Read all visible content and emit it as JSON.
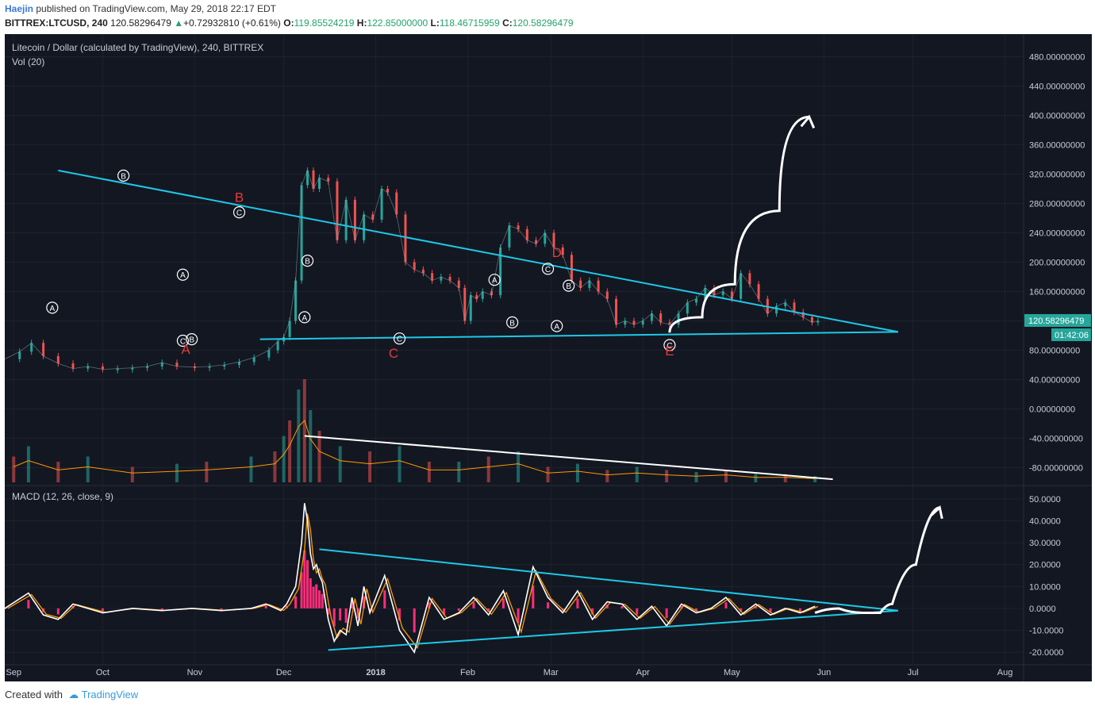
{
  "header": {
    "user": "Haejin",
    "published": "published on TradingView.com, May 29, 2018 22:17 EDT",
    "symbol": "BITTREX:LTCUSD, 240",
    "price": "120.58296479",
    "change": "+0.72932810 (+0.61%)",
    "o_label": "O:",
    "o_value": "119.85524219",
    "h_label": "H:",
    "h_value": "122.85000000",
    "l_label": "L:",
    "l_value": "118.46715959",
    "c_label": "C:",
    "c_value": "120.58296479"
  },
  "chart": {
    "title": "Litecoin / Dollar (calculated by TradingView), 240, BITTREX",
    "volume_label": "Vol (20)",
    "macd_label": "MACD (12, 26, close, 9)",
    "last_price_tag": "120.58296479",
    "countdown_tag": "01:42:06"
  },
  "colors": {
    "background": "#131722",
    "candle_up": "#26a69a",
    "candle_down": "#ef5350",
    "trendline": "#1ec8e6",
    "macd_line": "#ffffff",
    "signal_line": "#ff9800",
    "histogram": "#ff2d7a",
    "wave_label_red": "#e53935",
    "price_tag": "#26a69a"
  },
  "footer": {
    "created_with": "Created with",
    "brand": "TradingView"
  },
  "chart_data": [
    {
      "type": "line",
      "name": "price",
      "ylim": [
        -100,
        500
      ],
      "y_ticks": [
        "480.00000000",
        "440.00000000",
        "400.00000000",
        "360.00000000",
        "320.00000000",
        "280.00000000",
        "240.00000000",
        "200.00000000",
        "160.00000000",
        "120.00000000",
        "80.00000000",
        "40.00000000",
        "0.00000000",
        "-40.00000000",
        "-80.00000000"
      ],
      "y_tick_values": [
        480,
        440,
        400,
        360,
        320,
        280,
        240,
        200,
        160,
        120,
        80,
        40,
        0,
        -40,
        -80
      ],
      "x_ticks": [
        "Sep",
        "Oct",
        "Nov",
        "Dec",
        "2018",
        "Feb",
        "Mar",
        "Apr",
        "May",
        "Jun",
        "Jul",
        "Aug"
      ],
      "x_tick_days": [
        0,
        30,
        61,
        91,
        122,
        153,
        181,
        212,
        242,
        273,
        303,
        334
      ],
      "day_range": [
        -3,
        340
      ],
      "series": [
        {
          "x": [
            -3,
            2,
            6,
            10,
            15,
            20,
            25,
            30,
            35,
            40,
            45,
            50,
            55,
            61,
            66,
            71,
            76,
            81,
            86,
            89,
            91,
            93,
            95,
            97,
            99,
            101,
            103,
            106,
            109,
            112,
            115,
            118,
            121,
            124,
            126,
            129,
            132,
            135,
            138,
            141,
            144,
            147,
            150,
            152,
            154,
            156,
            158,
            161,
            164,
            167,
            170,
            173,
            176,
            179,
            182,
            185,
            188,
            191,
            194,
            197,
            200,
            203,
            206,
            209,
            212,
            215,
            218,
            221,
            224,
            227,
            230,
            233,
            236,
            239,
            242,
            245,
            248,
            251,
            254,
            257,
            260,
            263,
            266,
            269,
            271
          ],
          "y": [
            68,
            78,
            90,
            72,
            62,
            55,
            58,
            54,
            55,
            56,
            58,
            63,
            58,
            57,
            58,
            60,
            64,
            70,
            80,
            92,
            98,
            120,
            175,
            305,
            325,
            300,
            315,
            310,
            230,
            285,
            230,
            265,
            258,
            300,
            295,
            265,
            200,
            190,
            185,
            175,
            180,
            175,
            165,
            120,
            155,
            150,
            160,
            155,
            220,
            250,
            245,
            230,
            225,
            240,
            220,
            210,
            175,
            165,
            175,
            160,
            150,
            115,
            120,
            115,
            120,
            130,
            118,
            115,
            130,
            145,
            150,
            165,
            155,
            160,
            150,
            185,
            170,
            150,
            130,
            140,
            145,
            132,
            125,
            118,
            120
          ]
        }
      ],
      "trendlines": [
        {
          "from": [
            15,
            325
          ],
          "to": [
            270,
            115
          ],
          "extend_to": [
            298,
            105
          ]
        },
        {
          "from": [
            83,
            95
          ],
          "to": [
            298,
            105
          ]
        }
      ],
      "wave_labels": [
        {
          "text": "A",
          "x": 13,
          "y": 138
        },
        {
          "text": "B",
          "x": 37,
          "y": 318
        },
        {
          "text": "A",
          "x": 57,
          "y": 183
        },
        {
          "text": "C",
          "x": 57,
          "y": 93
        },
        {
          "text": "B",
          "x": 60,
          "y": 95
        },
        {
          "text": "C",
          "x": 76,
          "y": 268
        },
        {
          "text": "B",
          "x": 99,
          "y": 202
        },
        {
          "text": "A",
          "x": 98,
          "y": 125
        },
        {
          "text": "C",
          "x": 130,
          "y": 96
        },
        {
          "text": "A",
          "x": 162,
          "y": 176
        },
        {
          "text": "B",
          "x": 168,
          "y": 118
        },
        {
          "text": "C",
          "x": 180,
          "y": 191
        },
        {
          "text": "A",
          "x": 183,
          "y": 113
        },
        {
          "text": "B",
          "x": 187,
          "y": 168
        },
        {
          "text": "C",
          "x": 221,
          "y": 87
        }
      ],
      "wave_markers": [
        {
          "text": "A",
          "x": 58,
          "y": 75
        },
        {
          "text": "B",
          "x": 76,
          "y": 282
        },
        {
          "text": "C",
          "x": 128,
          "y": 70
        },
        {
          "text": "D",
          "x": 183,
          "y": 207
        },
        {
          "text": "E",
          "x": 221,
          "y": 73
        }
      ],
      "projection": {
        "x": [
          221,
          232,
          243,
          258,
          268
        ],
        "y": [
          104,
          125,
          170,
          270,
          398
        ]
      }
    },
    {
      "type": "bar",
      "name": "volume",
      "note": "relative heights",
      "x": [
        0,
        5,
        15,
        25,
        40,
        55,
        65,
        80,
        88,
        91,
        93,
        96,
        98,
        100,
        103,
        110,
        120,
        130,
        140,
        150,
        160,
        170,
        180,
        190,
        200,
        210,
        220,
        230,
        240,
        250,
        260,
        270
      ],
      "values": [
        0.25,
        0.35,
        0.2,
        0.25,
        0.15,
        0.18,
        0.2,
        0.25,
        0.3,
        0.45,
        0.6,
        0.9,
        1.0,
        0.7,
        0.5,
        0.35,
        0.3,
        0.35,
        0.2,
        0.2,
        0.25,
        0.3,
        0.15,
        0.18,
        0.12,
        0.15,
        0.12,
        0.1,
        0.12,
        0.08,
        0.08,
        0.06
      ],
      "trendline": {
        "from": [
          98,
          0.45
        ],
        "to": [
          276,
          0.03
        ]
      }
    },
    {
      "type": "line",
      "name": "MACD",
      "ylim": [
        -25,
        55
      ],
      "y_ticks": [
        "50.0000",
        "40.0000",
        "30.0000",
        "20.0000",
        "10.0000",
        "0.0000",
        "-10.0000",
        "-20.0000"
      ],
      "y_tick_values": [
        50,
        40,
        30,
        20,
        10,
        0,
        -10,
        -20
      ],
      "series": [
        {
          "x": [
            -3,
            5,
            10,
            15,
            20,
            30,
            40,
            50,
            60,
            70,
            80,
            85,
            90,
            92,
            95,
            97,
            98,
            99,
            100,
            101,
            102,
            103,
            104,
            106,
            108,
            110,
            112,
            114,
            116,
            118,
            120,
            125,
            130,
            135,
            140,
            145,
            150,
            155,
            160,
            165,
            170,
            175,
            180,
            185,
            190,
            195,
            200,
            205,
            210,
            215,
            220,
            225,
            230,
            235,
            240,
            245,
            250,
            255,
            260,
            265,
            270
          ],
          "y": [
            0,
            7,
            -3,
            -5,
            2,
            -2,
            0,
            -1,
            0,
            -1,
            0,
            2,
            -1,
            2,
            10,
            30,
            48,
            40,
            25,
            18,
            20,
            15,
            12,
            -5,
            -15,
            -10,
            -12,
            5,
            -8,
            10,
            -2,
            15,
            -10,
            -20,
            5,
            -5,
            -2,
            5,
            -3,
            8,
            -12,
            19,
            5,
            -2,
            8,
            -5,
            3,
            2,
            -5,
            1,
            -8,
            2,
            -2,
            0,
            5,
            -3,
            2,
            -3,
            0,
            -2,
            1
          ]
        }
      ],
      "trendlines": [
        {
          "from": [
            103,
            27
          ],
          "to": [
            298,
            -1
          ]
        },
        {
          "from": [
            106,
            -19
          ],
          "to": [
            298,
            -1
          ]
        }
      ],
      "projection": {
        "x": [
          270,
          278,
          286,
          292,
          296,
          304,
          312
        ],
        "y": [
          -2,
          0,
          -2,
          -2,
          2,
          20,
          46
        ]
      }
    }
  ]
}
